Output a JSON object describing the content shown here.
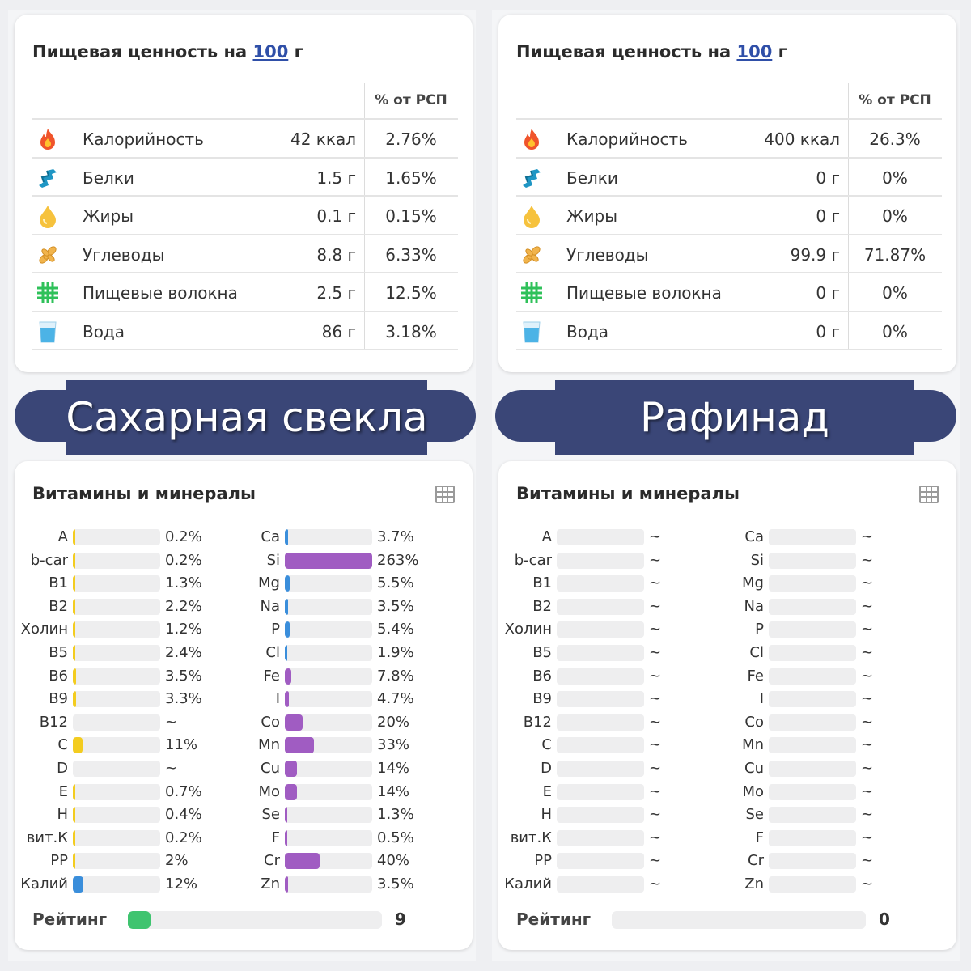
{
  "colors": {
    "banner": "#3a4677",
    "vitamin": "#f3cc1f",
    "mineral": "#a05cc2",
    "electrolyte": "#3a8edb",
    "rating": "#3fc46f",
    "link": "#2f4fa8"
  },
  "panels": [
    {
      "title_prefix": "Пищевая ценность на",
      "title_amount": "100",
      "title_unit": "г",
      "pct_header": "% от РСП",
      "nutrients": [
        {
          "icon": "fire-icon",
          "name": "Калорийность",
          "value": "42 ккал",
          "pct": "2.76%"
        },
        {
          "icon": "protein-icon",
          "name": "Белки",
          "value": "1.5 г",
          "pct": "1.65%"
        },
        {
          "icon": "oil-drop-icon",
          "name": "Жиры",
          "value": "0.1 г",
          "pct": "0.15%"
        },
        {
          "icon": "wheat-icon",
          "name": "Углеводы",
          "value": "8.8 г",
          "pct": "6.33%"
        },
        {
          "icon": "fiber-grid-icon",
          "name": "Пищевые волокна",
          "value": "2.5 г",
          "pct": "12.5%"
        },
        {
          "icon": "water-glass-icon",
          "name": "Вода",
          "value": "86 г",
          "pct": "3.18%"
        }
      ],
      "banner": "Сахарная свекла",
      "vm_title": "Витамины и минералы",
      "vitamins": [
        {
          "label": "A",
          "pct": "0.2%",
          "level": 0.2,
          "color": "#f3cc1f"
        },
        {
          "label": "b-car",
          "pct": "0.2%",
          "level": 0.2,
          "color": "#f3cc1f"
        },
        {
          "label": "B1",
          "pct": "1.3%",
          "level": 1.3,
          "color": "#f3cc1f"
        },
        {
          "label": "B2",
          "pct": "2.2%",
          "level": 2.2,
          "color": "#f3cc1f"
        },
        {
          "label": "Холин",
          "pct": "1.2%",
          "level": 1.2,
          "color": "#f3cc1f"
        },
        {
          "label": "B5",
          "pct": "2.4%",
          "level": 2.4,
          "color": "#f3cc1f"
        },
        {
          "label": "B6",
          "pct": "3.5%",
          "level": 3.5,
          "color": "#f3cc1f"
        },
        {
          "label": "B9",
          "pct": "3.3%",
          "level": 3.3,
          "color": "#f3cc1f"
        },
        {
          "label": "B12",
          "pct": "~",
          "level": 0,
          "color": "#f3cc1f"
        },
        {
          "label": "C",
          "pct": "11%",
          "level": 11,
          "color": "#f3cc1f"
        },
        {
          "label": "D",
          "pct": "~",
          "level": 0,
          "color": "#f3cc1f"
        },
        {
          "label": "E",
          "pct": "0.7%",
          "level": 0.7,
          "color": "#f3cc1f"
        },
        {
          "label": "H",
          "pct": "0.4%",
          "level": 0.4,
          "color": "#f3cc1f"
        },
        {
          "label": "вит.К",
          "pct": "0.2%",
          "level": 0.2,
          "color": "#f3cc1f"
        },
        {
          "label": "PP",
          "pct": "2%",
          "level": 2,
          "color": "#f3cc1f"
        },
        {
          "label": "Калий",
          "pct": "12%",
          "level": 12,
          "color": "#3a8edb"
        }
      ],
      "minerals": [
        {
          "label": "Ca",
          "pct": "3.7%",
          "level": 3.7,
          "color": "#3a8edb"
        },
        {
          "label": "Si",
          "pct": "263%",
          "level": 263,
          "color": "#a05cc2"
        },
        {
          "label": "Mg",
          "pct": "5.5%",
          "level": 5.5,
          "color": "#3a8edb"
        },
        {
          "label": "Na",
          "pct": "3.5%",
          "level": 3.5,
          "color": "#3a8edb"
        },
        {
          "label": "P",
          "pct": "5.4%",
          "level": 5.4,
          "color": "#3a8edb"
        },
        {
          "label": "Cl",
          "pct": "1.9%",
          "level": 1.9,
          "color": "#3a8edb"
        },
        {
          "label": "Fe",
          "pct": "7.8%",
          "level": 7.8,
          "color": "#a05cc2"
        },
        {
          "label": "I",
          "pct": "4.7%",
          "level": 4.7,
          "color": "#a05cc2"
        },
        {
          "label": "Co",
          "pct": "20%",
          "level": 20,
          "color": "#a05cc2"
        },
        {
          "label": "Mn",
          "pct": "33%",
          "level": 33,
          "color": "#a05cc2"
        },
        {
          "label": "Cu",
          "pct": "14%",
          "level": 14,
          "color": "#a05cc2"
        },
        {
          "label": "Mo",
          "pct": "14%",
          "level": 14,
          "color": "#a05cc2"
        },
        {
          "label": "Se",
          "pct": "1.3%",
          "level": 1.3,
          "color": "#a05cc2"
        },
        {
          "label": "F",
          "pct": "0.5%",
          "level": 0.5,
          "color": "#a05cc2"
        },
        {
          "label": "Cr",
          "pct": "40%",
          "level": 40,
          "color": "#a05cc2"
        },
        {
          "label": "Zn",
          "pct": "3.5%",
          "level": 3.5,
          "color": "#a05cc2"
        }
      ],
      "rating_label": "Рейтинг",
      "rating_value": "9",
      "rating_level": 0.09
    },
    {
      "title_prefix": "Пищевая ценность на",
      "title_amount": "100",
      "title_unit": "г",
      "pct_header": "% от РСП",
      "nutrients": [
        {
          "icon": "fire-icon",
          "name": "Калорийность",
          "value": "400 ккал",
          "pct": "26.3%"
        },
        {
          "icon": "protein-icon",
          "name": "Белки",
          "value": "0 г",
          "pct": "0%"
        },
        {
          "icon": "oil-drop-icon",
          "name": "Жиры",
          "value": "0 г",
          "pct": "0%"
        },
        {
          "icon": "wheat-icon",
          "name": "Углеводы",
          "value": "99.9 г",
          "pct": "71.87%"
        },
        {
          "icon": "fiber-grid-icon",
          "name": "Пищевые волокна",
          "value": "0 г",
          "pct": "0%"
        },
        {
          "icon": "water-glass-icon",
          "name": "Вода",
          "value": "0 г",
          "pct": "0%"
        }
      ],
      "banner": "Рафинад",
      "vm_title": "Витамины и минералы",
      "vitamins": [
        {
          "label": "A",
          "pct": "~",
          "level": 0,
          "color": "#f3cc1f"
        },
        {
          "label": "b-car",
          "pct": "~",
          "level": 0,
          "color": "#f3cc1f"
        },
        {
          "label": "B1",
          "pct": "~",
          "level": 0,
          "color": "#f3cc1f"
        },
        {
          "label": "B2",
          "pct": "~",
          "level": 0,
          "color": "#f3cc1f"
        },
        {
          "label": "Холин",
          "pct": "~",
          "level": 0,
          "color": "#f3cc1f"
        },
        {
          "label": "B5",
          "pct": "~",
          "level": 0,
          "color": "#f3cc1f"
        },
        {
          "label": "B6",
          "pct": "~",
          "level": 0,
          "color": "#f3cc1f"
        },
        {
          "label": "B9",
          "pct": "~",
          "level": 0,
          "color": "#f3cc1f"
        },
        {
          "label": "B12",
          "pct": "~",
          "level": 0,
          "color": "#f3cc1f"
        },
        {
          "label": "C",
          "pct": "~",
          "level": 0,
          "color": "#f3cc1f"
        },
        {
          "label": "D",
          "pct": "~",
          "level": 0,
          "color": "#f3cc1f"
        },
        {
          "label": "E",
          "pct": "~",
          "level": 0,
          "color": "#f3cc1f"
        },
        {
          "label": "H",
          "pct": "~",
          "level": 0,
          "color": "#f3cc1f"
        },
        {
          "label": "вит.К",
          "pct": "~",
          "level": 0,
          "color": "#f3cc1f"
        },
        {
          "label": "PP",
          "pct": "~",
          "level": 0,
          "color": "#f3cc1f"
        },
        {
          "label": "Калий",
          "pct": "~",
          "level": 0,
          "color": "#3a8edb"
        }
      ],
      "minerals": [
        {
          "label": "Ca",
          "pct": "~",
          "level": 0,
          "color": "#3a8edb"
        },
        {
          "label": "Si",
          "pct": "~",
          "level": 0,
          "color": "#a05cc2"
        },
        {
          "label": "Mg",
          "pct": "~",
          "level": 0,
          "color": "#3a8edb"
        },
        {
          "label": "Na",
          "pct": "~",
          "level": 0,
          "color": "#3a8edb"
        },
        {
          "label": "P",
          "pct": "~",
          "level": 0,
          "color": "#3a8edb"
        },
        {
          "label": "Cl",
          "pct": "~",
          "level": 0,
          "color": "#3a8edb"
        },
        {
          "label": "Fe",
          "pct": "~",
          "level": 0,
          "color": "#a05cc2"
        },
        {
          "label": "I",
          "pct": "~",
          "level": 0,
          "color": "#a05cc2"
        },
        {
          "label": "Co",
          "pct": "~",
          "level": 0,
          "color": "#a05cc2"
        },
        {
          "label": "Mn",
          "pct": "~",
          "level": 0,
          "color": "#a05cc2"
        },
        {
          "label": "Cu",
          "pct": "~",
          "level": 0,
          "color": "#a05cc2"
        },
        {
          "label": "Mo",
          "pct": "~",
          "level": 0,
          "color": "#a05cc2"
        },
        {
          "label": "Se",
          "pct": "~",
          "level": 0,
          "color": "#a05cc2"
        },
        {
          "label": "F",
          "pct": "~",
          "level": 0,
          "color": "#a05cc2"
        },
        {
          "label": "Cr",
          "pct": "~",
          "level": 0,
          "color": "#a05cc2"
        },
        {
          "label": "Zn",
          "pct": "~",
          "level": 0,
          "color": "#a05cc2"
        }
      ],
      "rating_label": "Рейтинг",
      "rating_value": "0",
      "rating_level": 0
    }
  ]
}
